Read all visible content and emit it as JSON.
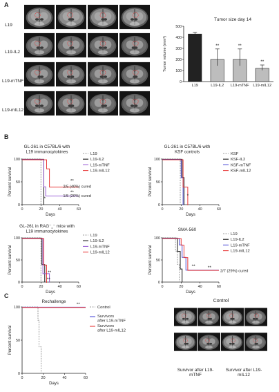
{
  "panels": {
    "A": "A",
    "B": "B",
    "C": "C"
  },
  "panelA": {
    "row_labels": [
      "L19",
      "L19-IL2",
      "L19-mTNF",
      "L19-mIL12"
    ]
  },
  "panelC": {
    "control_title": "Control",
    "caption_left": "Survivor after L19-mTNF",
    "caption_right": "Survivor after L19-mIL12"
  },
  "colors": {
    "black": "#111111",
    "blue": "#4f4fd8",
    "purple": "#9a5fd6",
    "red": "#e83a3a",
    "gray": "#9a9a9a",
    "bar": "#222222"
  },
  "chart_data": [
    {
      "id": "tumor_size",
      "type": "bar",
      "title": "Tumor size day 14",
      "ylabel": "Tumor volume (mm³)",
      "categories": [
        "L19",
        "L19-IL2",
        "L19-mTNF",
        "L19-mIL12"
      ],
      "values": [
        430,
        200,
        200,
        120
      ],
      "errors": [
        15,
        95,
        95,
        30
      ],
      "significance": [
        "",
        "**",
        "**",
        "**"
      ],
      "ylim": [
        0,
        500
      ],
      "yticks": [
        0,
        100,
        200,
        300,
        400,
        500
      ]
    },
    {
      "id": "gl261_immuno",
      "type": "line",
      "step": true,
      "title": [
        "GL-261 in C57BL/6 with",
        "L19 immunocytokines"
      ],
      "xlabel": "Days",
      "ylabel": "Percent survival",
      "xlim": [
        0,
        60
      ],
      "ylim": [
        0,
        100
      ],
      "xticks": [
        0,
        20,
        40,
        60
      ],
      "yticks": [
        0,
        50,
        100
      ],
      "legend": "right",
      "series": [
        {
          "name": "L19",
          "color": "gray",
          "dash": true,
          "points": [
            [
              0,
              100
            ],
            [
              20,
              100
            ],
            [
              20,
              0
            ]
          ]
        },
        {
          "name": "L19-IL2",
          "color": "black",
          "dash": false,
          "points": [
            [
              0,
              100
            ],
            [
              23,
              100
            ],
            [
              23,
              0
            ]
          ]
        },
        {
          "name": "L19-mTNF",
          "color": "purple",
          "dash": false,
          "points": [
            [
              0,
              100
            ],
            [
              23,
              100
            ],
            [
              23,
              40
            ],
            [
              25,
              40
            ],
            [
              25,
              20
            ],
            [
              60,
              20
            ]
          ]
        },
        {
          "name": "L19-mIL12",
          "color": "red",
          "dash": false,
          "points": [
            [
              0,
              100
            ],
            [
              26,
              100
            ],
            [
              26,
              80
            ],
            [
              29,
              80
            ],
            [
              29,
              40
            ],
            [
              60,
              40
            ]
          ]
        }
      ],
      "annotations": [
        {
          "x": 53,
          "y": 52,
          "text": "**"
        },
        {
          "x": 53,
          "y": 27,
          "text": "**"
        },
        {
          "x": 24,
          "y": 14,
          "text": "*"
        },
        {
          "x": 42,
          "y": 40,
          "text": "2/5 (40%) cured"
        },
        {
          "x": 42,
          "y": 20,
          "text": "1/5 (20%) cured"
        }
      ]
    },
    {
      "id": "gl261_ksf",
      "type": "line",
      "step": true,
      "title": [
        "GL-261 in C57BL/6 with",
        "KSF controls"
      ],
      "xlabel": "Days",
      "ylabel": "Percent survival",
      "xlim": [
        0,
        60
      ],
      "ylim": [
        0,
        100
      ],
      "xticks": [
        0,
        20,
        40,
        60
      ],
      "yticks": [
        0,
        50,
        100
      ],
      "legend": "right",
      "series": [
        {
          "name": "KSF",
          "color": "gray",
          "dash": true,
          "points": [
            [
              0,
              100
            ],
            [
              19,
              100
            ],
            [
              19,
              0
            ]
          ]
        },
        {
          "name": "KSF-IL2",
          "color": "black",
          "dash": false,
          "points": [
            [
              0,
              100
            ],
            [
              21,
              100
            ],
            [
              21,
              60
            ],
            [
              23,
              60
            ],
            [
              23,
              0
            ]
          ]
        },
        {
          "name": "KSF-mTNF",
          "color": "blue",
          "dash": false,
          "points": [
            [
              0,
              100
            ],
            [
              20,
              100
            ],
            [
              20,
              60
            ],
            [
              22,
              60
            ],
            [
              22,
              0
            ]
          ]
        },
        {
          "name": "KSF-mIL12",
          "color": "red",
          "dash": false,
          "points": [
            [
              0,
              100
            ],
            [
              22,
              100
            ],
            [
              22,
              40
            ],
            [
              27,
              40
            ],
            [
              27,
              0
            ]
          ]
        }
      ],
      "annotations": [
        {
          "x": 27,
          "y": 20,
          "text": "*"
        }
      ]
    },
    {
      "id": "gl261_rag",
      "type": "line",
      "step": true,
      "title": [
        "GL-261 in RAG⁻˷⁻ mice with",
        "L19 immunocytokines"
      ],
      "xlabel": "Days",
      "ylabel": "Percent survival",
      "xlim": [
        0,
        60
      ],
      "ylim": [
        0,
        100
      ],
      "xticks": [
        0,
        20,
        40,
        60
      ],
      "yticks": [
        0,
        50,
        100
      ],
      "legend": "right",
      "series": [
        {
          "name": "L19",
          "color": "gray",
          "dash": true,
          "points": [
            [
              0,
              100
            ],
            [
              20,
              100
            ],
            [
              20,
              0
            ]
          ]
        },
        {
          "name": "L19-IL2",
          "color": "black",
          "dash": false,
          "points": [
            [
              0,
              100
            ],
            [
              21,
              100
            ],
            [
              21,
              40
            ],
            [
              24,
              40
            ],
            [
              24,
              0
            ]
          ]
        },
        {
          "name": "L19-mTNF",
          "color": "purple",
          "dash": false,
          "points": [
            [
              0,
              100
            ],
            [
              22,
              100
            ],
            [
              22,
              20
            ],
            [
              29,
              20
            ],
            [
              29,
              0
            ]
          ]
        },
        {
          "name": "L19-mIL12",
          "color": "red",
          "dash": false,
          "points": [
            [
              0,
              100
            ],
            [
              23,
              100
            ],
            [
              23,
              40
            ],
            [
              26,
              40
            ],
            [
              26,
              0
            ]
          ]
        }
      ],
      "annotations": [
        {
          "x": 29,
          "y": 22,
          "text": "**"
        },
        {
          "x": 28,
          "y": 6,
          "text": "**"
        }
      ]
    },
    {
      "id": "sma560",
      "type": "line",
      "step": true,
      "title": [
        "SMA-560"
      ],
      "xlabel": "Days",
      "ylabel": "Percent survival",
      "xlim": [
        0,
        60
      ],
      "ylim": [
        0,
        100
      ],
      "xticks": [
        0,
        20,
        40,
        60
      ],
      "yticks": [
        0,
        50,
        100
      ],
      "legend": "right",
      "series": [
        {
          "name": "L19",
          "color": "gray",
          "dash": true,
          "points": [
            [
              0,
              100
            ],
            [
              14,
              100
            ],
            [
              14,
              70
            ],
            [
              16,
              70
            ],
            [
              16,
              40
            ],
            [
              18,
              40
            ],
            [
              18,
              0
            ]
          ]
        },
        {
          "name": "L19-IL2",
          "color": "black",
          "dash": false,
          "points": [
            [
              0,
              100
            ],
            [
              16,
              100
            ],
            [
              16,
              70
            ],
            [
              19,
              70
            ],
            [
              19,
              30
            ],
            [
              21,
              30
            ],
            [
              21,
              0
            ]
          ]
        },
        {
          "name": "L19-mTNF",
          "color": "blue",
          "dash": false,
          "points": [
            [
              0,
              100
            ],
            [
              18,
              100
            ],
            [
              18,
              85
            ],
            [
              21,
              85
            ],
            [
              21,
              57
            ],
            [
              25,
              57
            ],
            [
              25,
              28
            ],
            [
              60,
              28
            ]
          ]
        },
        {
          "name": "L19-mIL12",
          "color": "red",
          "dash": false,
          "points": [
            [
              0,
              100
            ],
            [
              20,
              100
            ],
            [
              20,
              85
            ],
            [
              23,
              85
            ],
            [
              23,
              57
            ],
            [
              27,
              57
            ],
            [
              27,
              28
            ],
            [
              60,
              28
            ]
          ]
        }
      ],
      "annotations": [
        {
          "x": 33,
          "y": 36,
          "text": "**"
        },
        {
          "x": 50,
          "y": 33,
          "text": "**"
        },
        {
          "x": 60,
          "y": 26,
          "text": "2/7 (29%) cured"
        }
      ]
    },
    {
      "id": "rechallenge",
      "type": "line",
      "step": true,
      "title": [
        "Rechallenge"
      ],
      "xlabel": "Days",
      "ylabel": "Percent survival",
      "xlim": [
        0,
        60
      ],
      "ylim": [
        0,
        100
      ],
      "xticks": [
        0,
        20,
        40,
        60
      ],
      "yticks": [
        0,
        50,
        100
      ],
      "legend": "right",
      "series": [
        {
          "name": "Control",
          "color": "gray",
          "dash": true,
          "points": [
            [
              0,
              100
            ],
            [
              15,
              100
            ],
            [
              15,
              80
            ],
            [
              16,
              80
            ],
            [
              16,
              40
            ],
            [
              18,
              40
            ],
            [
              18,
              0
            ]
          ]
        },
        {
          "name": "Survivors after L19-mTNF",
          "color": "blue",
          "dash": false,
          "points": [
            [
              0,
              100
            ],
            [
              60,
              100
            ]
          ]
        },
        {
          "name": "Survivors after L19-mIL12",
          "color": "red",
          "dash": false,
          "points": [
            [
              0,
              100
            ],
            [
              60,
              100
            ]
          ]
        }
      ],
      "annotations": [
        {
          "x": 53,
          "y": 104,
          "text": "**"
        }
      ]
    }
  ]
}
